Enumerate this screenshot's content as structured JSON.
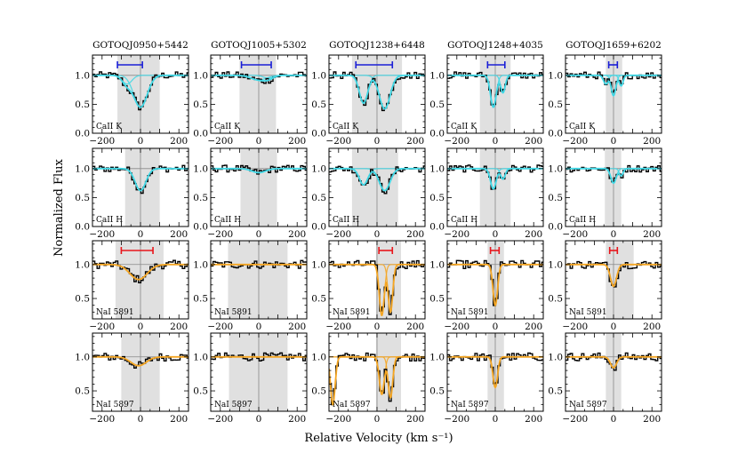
{
  "chart_data": {
    "type": "line",
    "xlabel": "Relative Velocity (km s⁻¹)",
    "ylabel": "Normalized Flux",
    "xlim": [
      -250,
      250
    ],
    "xticks": [
      -200,
      0,
      200
    ],
    "xtick_labels": [
      "−200",
      "0",
      "200"
    ],
    "yticks_top": [
      0.0,
      0.5,
      1.0
    ],
    "yticks_bottom": [
      0.5,
      1.0
    ],
    "ytick_labels_top": [
      "0.0",
      "0.5",
      "1.0"
    ],
    "ytick_labels_bottom": [
      "0.5",
      "1.0"
    ],
    "colors": {
      "data": "#000000",
      "fit_ca": "#40d8e6",
      "fit_na": "#f5a623",
      "bar_ca": "#1b1fd6",
      "bar_na": "#e8151b",
      "shade": "#e0e0e0",
      "continuum": "#888888"
    },
    "objects": [
      "GOTOQJ0950+5442",
      "GOTOQJ1005+5302",
      "GOTOQJ1238+6448",
      "GOTOQJ1248+4035",
      "GOTOQJ1659+6202"
    ],
    "rows": [
      {
        "line": "CaII K",
        "species": "ca",
        "ylim": [
          0.0,
          1.35
        ]
      },
      {
        "line": "CaII H",
        "species": "ca",
        "ylim": [
          0.0,
          1.35
        ]
      },
      {
        "line": "NaI 5891",
        "species": "na",
        "ylim": [
          0.2,
          1.35
        ]
      },
      {
        "line": "NaI 5897",
        "species": "na",
        "ylim": [
          0.2,
          1.35
        ]
      }
    ],
    "panels": [
      [
        {
          "shade": [
            -120,
            100
          ],
          "bar": [
            -120,
            10
          ],
          "components": [
            {
              "v": 0,
              "depth": 0.55,
              "sigma": 35
            },
            {
              "v": -70,
              "depth": 0.15,
              "sigma": 25
            }
          ]
        },
        {
          "shade": [
            -80,
            100
          ],
          "components": [
            {
              "v": 0,
              "depth": 0.38,
              "sigma": 28
            }
          ]
        },
        {
          "shade": [
            -130,
            120
          ],
          "bar": [
            -100,
            65
          ],
          "components": [
            {
              "v": -10,
              "depth": 0.22,
              "sigma": 45
            }
          ]
        },
        {
          "shade": [
            -100,
            100
          ],
          "components": [
            {
              "v": -10,
              "depth": 0.13,
              "sigma": 40
            }
          ]
        }
      ],
      [
        {
          "shade": [
            -100,
            90
          ],
          "bar": [
            -90,
            65
          ],
          "components": [
            {
              "v": 0,
              "depth": 0.08,
              "sigma": 40
            },
            {
              "v": 50,
              "depth": 0.05,
              "sigma": 25
            }
          ]
        },
        {
          "shade": [
            -95,
            95
          ],
          "components": [
            {
              "v": 0,
              "depth": 0.07,
              "sigma": 35
            }
          ]
        },
        {
          "shade": [
            -160,
            150
          ],
          "components": []
        },
        {
          "shade": [
            -155,
            150
          ],
          "components": []
        }
      ],
      [
        {
          "shade": [
            -130,
            130
          ],
          "bar": [
            -110,
            80
          ],
          "components": [
            {
              "v": -70,
              "depth": 0.48,
              "sigma": 22
            },
            {
              "v": 40,
              "depth": 0.58,
              "sigma": 28
            }
          ]
        },
        {
          "shade": [
            -130,
            110
          ],
          "components": [
            {
              "v": -70,
              "depth": 0.28,
              "sigma": 22
            },
            {
              "v": 40,
              "depth": 0.38,
              "sigma": 28
            }
          ]
        },
        {
          "shade": [
            -5,
            125
          ],
          "bar": [
            10,
            80
          ],
          "components": [
            {
              "v": 25,
              "depth": 0.75,
              "sigma": 13
            },
            {
              "v": 70,
              "depth": 0.7,
              "sigma": 12
            }
          ]
        },
        {
          "shade": [
            -5,
            125
          ],
          "components": [
            {
              "v": 25,
              "depth": 0.55,
              "sigma": 13
            },
            {
              "v": 70,
              "depth": 0.6,
              "sigma": 12
            },
            {
              "v": -230,
              "depth": 0.7,
              "sigma": 12
            }
          ]
        }
      ],
      [
        {
          "shade": [
            -80,
            80
          ],
          "bar": [
            -40,
            50
          ],
          "components": [
            {
              "v": -10,
              "depth": 0.55,
              "sigma": 15
            },
            {
              "v": 40,
              "depth": 0.3,
              "sigma": 12
            }
          ]
        },
        {
          "shade": [
            -80,
            80
          ],
          "components": [
            {
              "v": -10,
              "depth": 0.35,
              "sigma": 15
            },
            {
              "v": 40,
              "depth": 0.18,
              "sigma": 12
            }
          ]
        },
        {
          "shade": [
            -40,
            45
          ],
          "bar": [
            -25,
            20
          ],
          "components": [
            {
              "v": 0,
              "depth": 0.6,
              "sigma": 12
            }
          ]
        },
        {
          "shade": [
            -40,
            45
          ],
          "components": [
            {
              "v": 0,
              "depth": 0.45,
              "sigma": 12
            }
          ]
        }
      ],
      [
        {
          "shade": [
            -40,
            45
          ],
          "bar": [
            -25,
            20
          ],
          "components": [
            {
              "v": 0,
              "depth": 0.35,
              "sigma": 12
            },
            {
              "v": 40,
              "depth": 0.18,
              "sigma": 10
            },
            {
              "v": -40,
              "depth": 0.15,
              "sigma": 12
            }
          ]
        },
        {
          "shade": [
            -45,
            40
          ],
          "components": [
            {
              "v": 0,
              "depth": 0.25,
              "sigma": 14
            },
            {
              "v": 40,
              "depth": 0.12,
              "sigma": 10
            }
          ]
        },
        {
          "shade": [
            -40,
            105
          ],
          "bar": [
            -20,
            20
          ],
          "components": [
            {
              "v": 0,
              "depth": 0.32,
              "sigma": 16
            }
          ]
        },
        {
          "shade": [
            -40,
            40
          ],
          "components": [
            {
              "v": 0,
              "depth": 0.16,
              "sigma": 16
            }
          ]
        }
      ]
    ]
  }
}
